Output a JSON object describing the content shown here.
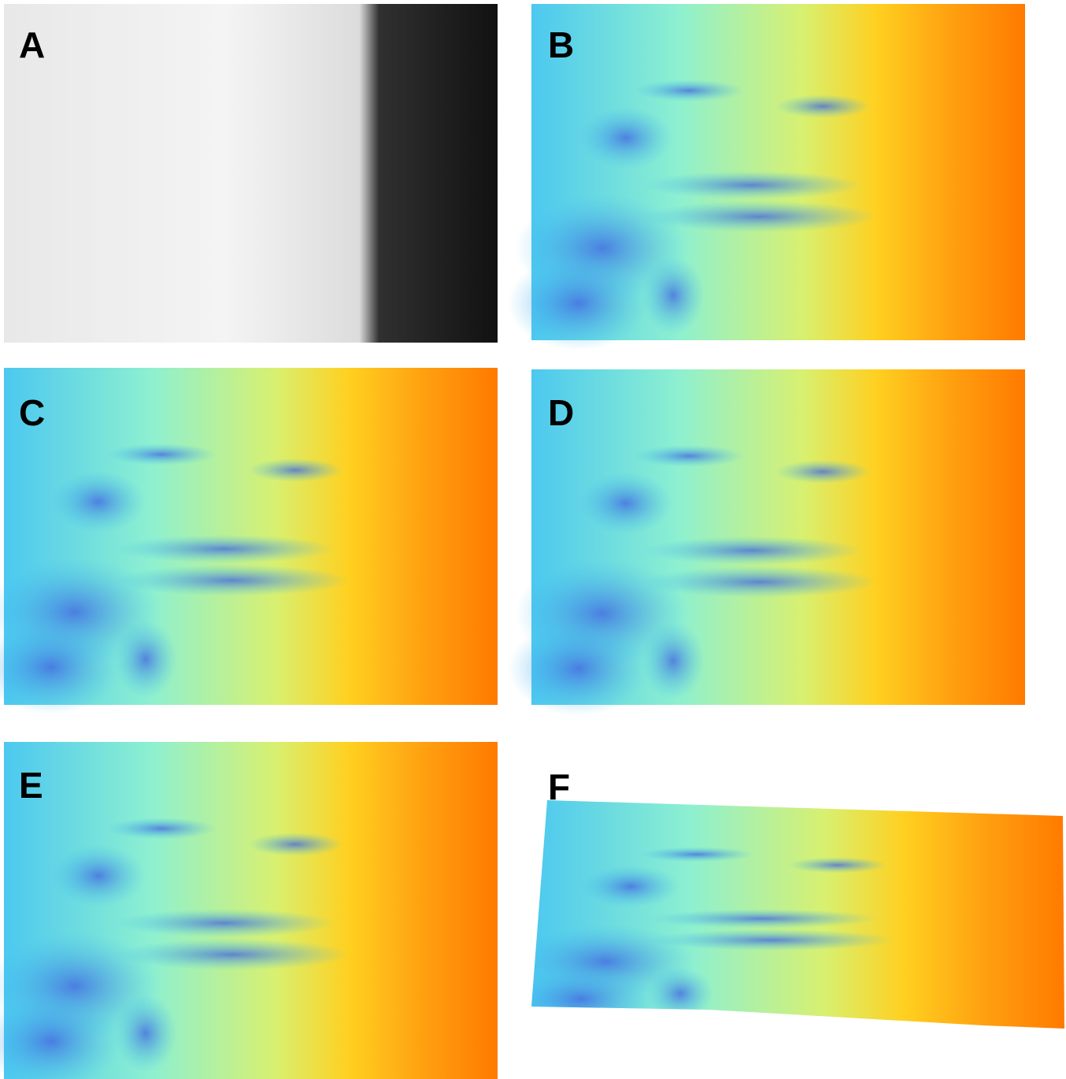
{
  "panels": [
    {
      "label": "A"
    },
    {
      "label": "B"
    },
    {
      "label": "C"
    },
    {
      "label": "D"
    },
    {
      "label": "E"
    },
    {
      "label": "F"
    }
  ]
}
